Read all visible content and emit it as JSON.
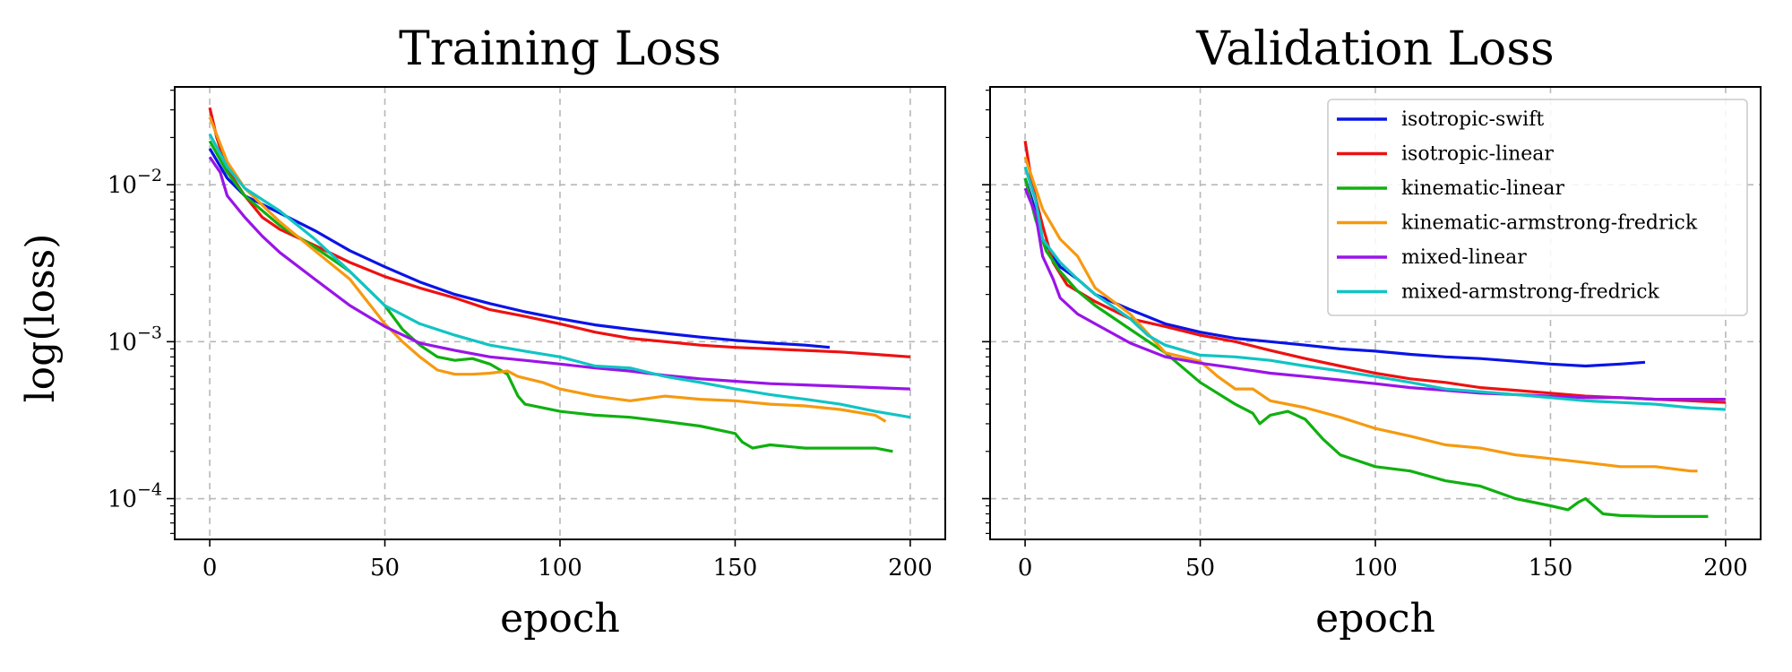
{
  "figure": {
    "ylabel": "log(loss)",
    "xlabel": "epoch"
  },
  "series_styles": [
    {
      "name": "isotropic-swift",
      "color": "#0a14e6"
    },
    {
      "name": "isotropic-linear",
      "color": "#ee1111"
    },
    {
      "name": "kinematic-linear",
      "color": "#10b010"
    },
    {
      "name": "kinematic-armstrong-fredrick",
      "color": "#f59a10"
    },
    {
      "name": "mixed-linear",
      "color": "#9a14e8"
    },
    {
      "name": "mixed-armstrong-fredrick",
      "color": "#10c4c4"
    }
  ],
  "chart_data": [
    {
      "type": "line",
      "title": "Training Loss",
      "xlabel": "epoch",
      "ylabel": "log(loss)",
      "yscale": "log",
      "xlim": [
        -10,
        210
      ],
      "ylim": [
        5.5e-05,
        0.042
      ],
      "xticks": [
        0,
        50,
        100,
        150,
        200
      ],
      "yticks": [
        {
          "v": 0.01,
          "base": "10",
          "exp": "−2"
        },
        {
          "v": 0.001,
          "base": "10",
          "exp": "−3"
        },
        {
          "v": 0.0001,
          "base": "10",
          "exp": "−4"
        }
      ],
      "grid": true,
      "legend": false,
      "series": [
        {
          "name": "isotropic-swift",
          "x": [
            0,
            5,
            10,
            15,
            20,
            30,
            40,
            50,
            60,
            70,
            80,
            90,
            100,
            110,
            120,
            130,
            140,
            150,
            160,
            170,
            177
          ],
          "y": [
            0.017,
            0.011,
            0.0085,
            0.0075,
            0.0066,
            0.0051,
            0.0038,
            0.003,
            0.0024,
            0.002,
            0.00175,
            0.00155,
            0.0014,
            0.00128,
            0.0012,
            0.00113,
            0.00107,
            0.00102,
            0.00098,
            0.00095,
            0.00092
          ]
        },
        {
          "name": "isotropic-linear",
          "x": [
            0,
            2,
            5,
            10,
            15,
            20,
            30,
            40,
            50,
            60,
            70,
            80,
            90,
            100,
            110,
            120,
            130,
            140,
            150,
            160,
            170,
            180,
            190,
            200
          ],
          "y": [
            0.031,
            0.02,
            0.0125,
            0.0085,
            0.0062,
            0.0052,
            0.0041,
            0.0032,
            0.0026,
            0.0022,
            0.0019,
            0.0016,
            0.00145,
            0.0013,
            0.00115,
            0.00105,
            0.001,
            0.00095,
            0.00092,
            0.0009,
            0.00088,
            0.00086,
            0.00083,
            0.0008
          ]
        },
        {
          "name": "kinematic-linear",
          "x": [
            0,
            5,
            10,
            20,
            30,
            40,
            50,
            55,
            60,
            65,
            70,
            75,
            80,
            85,
            88,
            90,
            100,
            110,
            120,
            130,
            140,
            150,
            152,
            155,
            160,
            170,
            180,
            190,
            195
          ],
          "y": [
            0.019,
            0.012,
            0.0085,
            0.0055,
            0.004,
            0.0028,
            0.0017,
            0.0012,
            0.00095,
            0.0008,
            0.00076,
            0.00078,
            0.00072,
            0.00062,
            0.00045,
            0.0004,
            0.00036,
            0.00034,
            0.00033,
            0.00031,
            0.00029,
            0.00026,
            0.00023,
            0.00021,
            0.00022,
            0.00021,
            0.00021,
            0.00021,
            0.0002
          ]
        },
        {
          "name": "kinematic-armstrong-fredrick",
          "x": [
            0,
            5,
            10,
            20,
            30,
            40,
            50,
            55,
            60,
            65,
            70,
            75,
            80,
            85,
            88,
            95,
            100,
            110,
            120,
            130,
            140,
            150,
            160,
            170,
            180,
            190,
            193
          ],
          "y": [
            0.027,
            0.014,
            0.0095,
            0.0058,
            0.0038,
            0.0025,
            0.0013,
            0.001,
            0.0008,
            0.00066,
            0.00062,
            0.00062,
            0.00063,
            0.00065,
            0.0006,
            0.00055,
            0.0005,
            0.00045,
            0.00042,
            0.00045,
            0.00043,
            0.00042,
            0.0004,
            0.00039,
            0.00037,
            0.00034,
            0.00031
          ]
        },
        {
          "name": "mixed-linear",
          "x": [
            0,
            3,
            5,
            10,
            15,
            20,
            30,
            40,
            50,
            60,
            70,
            80,
            90,
            100,
            110,
            120,
            130,
            140,
            150,
            160,
            170,
            180,
            190,
            200
          ],
          "y": [
            0.015,
            0.012,
            0.0085,
            0.0062,
            0.0047,
            0.0037,
            0.0025,
            0.0017,
            0.00125,
            0.00098,
            0.00088,
            0.0008,
            0.00076,
            0.00072,
            0.00068,
            0.00065,
            0.00061,
            0.00058,
            0.00056,
            0.00054,
            0.00053,
            0.00052,
            0.00051,
            0.0005
          ]
        },
        {
          "name": "mixed-armstrong-fredrick",
          "x": [
            0,
            5,
            10,
            20,
            30,
            40,
            50,
            60,
            70,
            80,
            90,
            100,
            110,
            120,
            130,
            140,
            150,
            160,
            170,
            180,
            190,
            200
          ],
          "y": [
            0.021,
            0.013,
            0.0095,
            0.0068,
            0.0045,
            0.0028,
            0.0017,
            0.0013,
            0.0011,
            0.00095,
            0.00087,
            0.0008,
            0.0007,
            0.00068,
            0.0006,
            0.00055,
            0.0005,
            0.00046,
            0.00043,
            0.0004,
            0.00036,
            0.00033
          ]
        }
      ]
    },
    {
      "type": "line",
      "title": "Validation Loss",
      "xlabel": "epoch",
      "yscale": "log",
      "xlim": [
        -10,
        210
      ],
      "ylim": [
        5.5e-05,
        0.042
      ],
      "xticks": [
        0,
        50,
        100,
        150,
        200
      ],
      "yticks": [
        {
          "v": 0.01,
          "base": "10",
          "exp": "−2"
        },
        {
          "v": 0.001,
          "base": "10",
          "exp": "−3"
        },
        {
          "v": 0.0001,
          "base": "10",
          "exp": "−4"
        }
      ],
      "grid": true,
      "legend": true,
      "legend_position": "top-right",
      "series": [
        {
          "name": "isotropic-swift",
          "x": [
            0,
            2,
            5,
            10,
            15,
            20,
            30,
            40,
            50,
            60,
            70,
            80,
            90,
            100,
            110,
            120,
            130,
            140,
            150,
            160,
            170,
            177
          ],
          "y": [
            0.011,
            0.008,
            0.0045,
            0.003,
            0.0025,
            0.002,
            0.0016,
            0.0013,
            0.00115,
            0.00105,
            0.001,
            0.00095,
            0.0009,
            0.00087,
            0.00083,
            0.0008,
            0.00078,
            0.00075,
            0.00072,
            0.0007,
            0.00072,
            0.00074
          ]
        },
        {
          "name": "isotropic-linear",
          "x": [
            0,
            2,
            5,
            8,
            12,
            20,
            30,
            40,
            50,
            60,
            70,
            80,
            90,
            100,
            110,
            120,
            130,
            140,
            150,
            160,
            170,
            180,
            190,
            200
          ],
          "y": [
            0.019,
            0.01,
            0.0055,
            0.0032,
            0.0023,
            0.0018,
            0.0014,
            0.00125,
            0.0011,
            0.001,
            0.00088,
            0.00078,
            0.0007,
            0.00063,
            0.00058,
            0.00055,
            0.00051,
            0.00049,
            0.00047,
            0.00045,
            0.00044,
            0.00043,
            0.00042,
            0.00041
          ]
        },
        {
          "name": "kinematic-linear",
          "x": [
            0,
            3,
            6,
            10,
            15,
            20,
            30,
            40,
            50,
            60,
            65,
            67,
            70,
            75,
            80,
            85,
            90,
            100,
            110,
            120,
            130,
            140,
            150,
            155,
            158,
            160,
            165,
            170,
            180,
            190,
            195
          ],
          "y": [
            0.011,
            0.006,
            0.0038,
            0.0028,
            0.0021,
            0.0017,
            0.0012,
            0.00085,
            0.00055,
            0.0004,
            0.00035,
            0.0003,
            0.00034,
            0.00036,
            0.00032,
            0.00024,
            0.00019,
            0.00016,
            0.00015,
            0.00013,
            0.00012,
            0.0001,
            9e-05,
            8.5e-05,
            9.5e-05,
            0.0001,
            8e-05,
            7.8e-05,
            7.7e-05,
            7.7e-05,
            7.7e-05
          ]
        },
        {
          "name": "kinematic-armstrong-fredrick",
          "x": [
            0,
            5,
            10,
            15,
            20,
            30,
            40,
            50,
            55,
            60,
            65,
            70,
            80,
            90,
            100,
            110,
            120,
            130,
            140,
            150,
            160,
            170,
            180,
            190,
            192
          ],
          "y": [
            0.015,
            0.007,
            0.0045,
            0.0035,
            0.0022,
            0.0015,
            0.00085,
            0.00075,
            0.0006,
            0.0005,
            0.0005,
            0.00042,
            0.00038,
            0.00033,
            0.00028,
            0.00025,
            0.00022,
            0.00021,
            0.00019,
            0.00018,
            0.00017,
            0.00016,
            0.00016,
            0.00015,
            0.00015
          ]
        },
        {
          "name": "mixed-linear",
          "x": [
            0,
            3,
            5,
            8,
            10,
            15,
            20,
            30,
            40,
            50,
            60,
            70,
            80,
            90,
            100,
            110,
            120,
            130,
            140,
            150,
            160,
            170,
            180,
            190,
            200
          ],
          "y": [
            0.0095,
            0.0065,
            0.0035,
            0.0025,
            0.0019,
            0.0015,
            0.0013,
            0.00098,
            0.0008,
            0.00073,
            0.00068,
            0.00063,
            0.0006,
            0.00057,
            0.00054,
            0.00051,
            0.00049,
            0.00047,
            0.00046,
            0.00045,
            0.00044,
            0.00044,
            0.00043,
            0.00043,
            0.00043
          ]
        },
        {
          "name": "mixed-armstrong-fredrick",
          "x": [
            0,
            3,
            5,
            10,
            15,
            20,
            30,
            35,
            40,
            50,
            60,
            70,
            80,
            90,
            100,
            110,
            120,
            130,
            140,
            150,
            160,
            170,
            180,
            190,
            200
          ],
          "y": [
            0.013,
            0.008,
            0.0045,
            0.0032,
            0.0025,
            0.002,
            0.0014,
            0.0011,
            0.00095,
            0.00082,
            0.0008,
            0.00076,
            0.0007,
            0.00065,
            0.0006,
            0.00055,
            0.0005,
            0.00048,
            0.00046,
            0.00044,
            0.00042,
            0.00041,
            0.0004,
            0.00038,
            0.00037
          ]
        }
      ]
    }
  ]
}
